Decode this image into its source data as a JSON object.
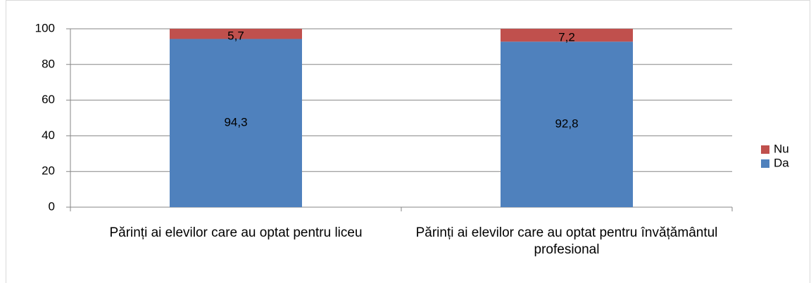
{
  "chart_data": {
    "type": "stacked_bar",
    "categories": [
      "Părinți ai elevilor care au optat pentru liceu",
      "Părinți ai elevilor care au optat pentru învățământul profesional"
    ],
    "series": [
      {
        "name": "Da",
        "color": "#4f81bd",
        "values": [
          94.3,
          92.8
        ],
        "value_labels": [
          "94,3",
          "92,8"
        ]
      },
      {
        "name": "Nu",
        "color": "#c0504d",
        "values": [
          5.7,
          7.2
        ],
        "value_labels": [
          "5,7",
          "7,2"
        ]
      }
    ],
    "ylim": [
      0,
      100
    ],
    "yticks": [
      0,
      20,
      40,
      60,
      80,
      100
    ],
    "grid": true,
    "legend": "right"
  }
}
